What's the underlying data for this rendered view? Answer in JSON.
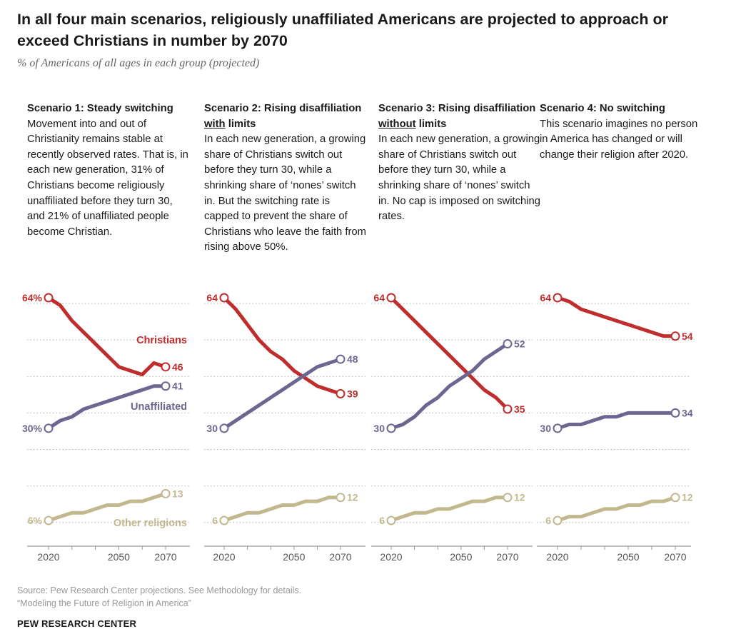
{
  "title": "In all four main scenarios, religiously unaffiliated Americans are projected to approach or exceed Christians in number by 2070",
  "subtitle": "% of Americans of all ages in each group (projected)",
  "colors": {
    "christians": "#bf2d2d",
    "unaffiliated": "#6c6790",
    "other": "#c2b88e",
    "grid": "#b0b0b0",
    "axis": "#999999"
  },
  "series_labels": {
    "christians": "Christians",
    "unaffiliated": "Unaffiliated",
    "other": "Other religions"
  },
  "panels": [
    {
      "title": "Scenario 1: Steady switching",
      "body": "Movement into and out of Christianity remains stable at recently observed rates. That is, in each new generation, 31% of Christians become religiously unaffiliated before they turn 30, and 21% of unaffiliated people become Christian."
    },
    {
      "title_pre": "Scenario 2: Rising disaffiliation ",
      "title_u": "with",
      "title_post": " limits",
      "body": "In each new generation, a growing share of Christians switch out before they turn 30, while a shrinking share of ‘nones’ switch in. But the switching rate is capped to prevent the share of Christians who leave the faith from rising above 50%."
    },
    {
      "title_pre": "Scenario 3: Rising disaffiliation ",
      "title_u": "without",
      "title_post": " limits",
      "body": "In each new generation, a growing share of Christians switch out before they turn 30, while a shrinking share of ‘nones’ switch in. No cap is imposed on switching rates."
    },
    {
      "title": "Scenario 4: No switching",
      "body": "This scenario imagines no person in America has changed or will change their religion after 2020."
    }
  ],
  "chart_data": [
    {
      "type": "line",
      "x": [
        2020,
        2025,
        2030,
        2035,
        2040,
        2045,
        2050,
        2055,
        2060,
        2065,
        2070
      ],
      "xticks": [
        "2020",
        "2050",
        "2070"
      ],
      "series": [
        {
          "name": "Christians",
          "values": [
            64,
            62,
            58,
            55,
            52,
            49,
            46,
            45,
            44,
            47,
            46
          ],
          "start_label": "64%",
          "end_label": "46"
        },
        {
          "name": "Unaffiliated",
          "values": [
            30,
            32,
            33,
            35,
            36,
            37,
            38,
            39,
            40,
            41,
            41
          ],
          "start_label": "30%",
          "end_label": "41"
        },
        {
          "name": "Other religions",
          "values": [
            6,
            7,
            8,
            8,
            9,
            10,
            10,
            11,
            11,
            12,
            13
          ],
          "start_label": "6%",
          "end_label": "13"
        }
      ]
    },
    {
      "type": "line",
      "x": [
        2020,
        2025,
        2030,
        2035,
        2040,
        2045,
        2050,
        2055,
        2060,
        2065,
        2070
      ],
      "xticks": [
        "2020",
        "2050",
        "2070"
      ],
      "series": [
        {
          "values": [
            64,
            61,
            57,
            53,
            50,
            48,
            45,
            43,
            41,
            40,
            39
          ],
          "start_label": "64",
          "end_label": "39"
        },
        {
          "values": [
            30,
            32,
            34,
            36,
            38,
            40,
            42,
            44,
            46,
            47,
            48
          ],
          "start_label": "30",
          "end_label": "48"
        },
        {
          "values": [
            6,
            7,
            8,
            8,
            9,
            10,
            10,
            11,
            11,
            12,
            12
          ],
          "start_label": "6",
          "end_label": "12"
        }
      ]
    },
    {
      "type": "line",
      "x": [
        2020,
        2025,
        2030,
        2035,
        2040,
        2045,
        2050,
        2055,
        2060,
        2065,
        2070
      ],
      "xticks": [
        "2020",
        "2050",
        "2070"
      ],
      "series": [
        {
          "values": [
            64,
            61,
            58,
            55,
            52,
            49,
            46,
            43,
            40,
            38,
            35
          ],
          "start_label": "64",
          "end_label": "35"
        },
        {
          "values": [
            30,
            31,
            33,
            36,
            38,
            41,
            43,
            45,
            48,
            50,
            52
          ],
          "start_label": "30",
          "end_label": "52"
        },
        {
          "values": [
            6,
            7,
            8,
            8,
            9,
            9,
            10,
            11,
            11,
            12,
            12
          ],
          "start_label": "6",
          "end_label": "12"
        }
      ]
    },
    {
      "type": "line",
      "x": [
        2020,
        2025,
        2030,
        2035,
        2040,
        2045,
        2050,
        2055,
        2060,
        2065,
        2070
      ],
      "xticks": [
        "2020",
        "2050",
        "2070"
      ],
      "series": [
        {
          "values": [
            64,
            63,
            61,
            60,
            59,
            58,
            57,
            56,
            55,
            54,
            54
          ],
          "start_label": "64",
          "end_label": "54"
        },
        {
          "values": [
            30,
            31,
            31,
            32,
            33,
            33,
            34,
            34,
            34,
            34,
            34
          ],
          "start_label": "30",
          "end_label": "34"
        },
        {
          "values": [
            6,
            7,
            7,
            8,
            9,
            9,
            10,
            10,
            11,
            11,
            12
          ],
          "start_label": "6",
          "end_label": "12"
        }
      ]
    }
  ],
  "source_line1": "Source: Pew Research Center projections. See Methodology for details.",
  "source_line2": "“Modeling the Future of Religion in America”",
  "org": "PEW RESEARCH CENTER"
}
